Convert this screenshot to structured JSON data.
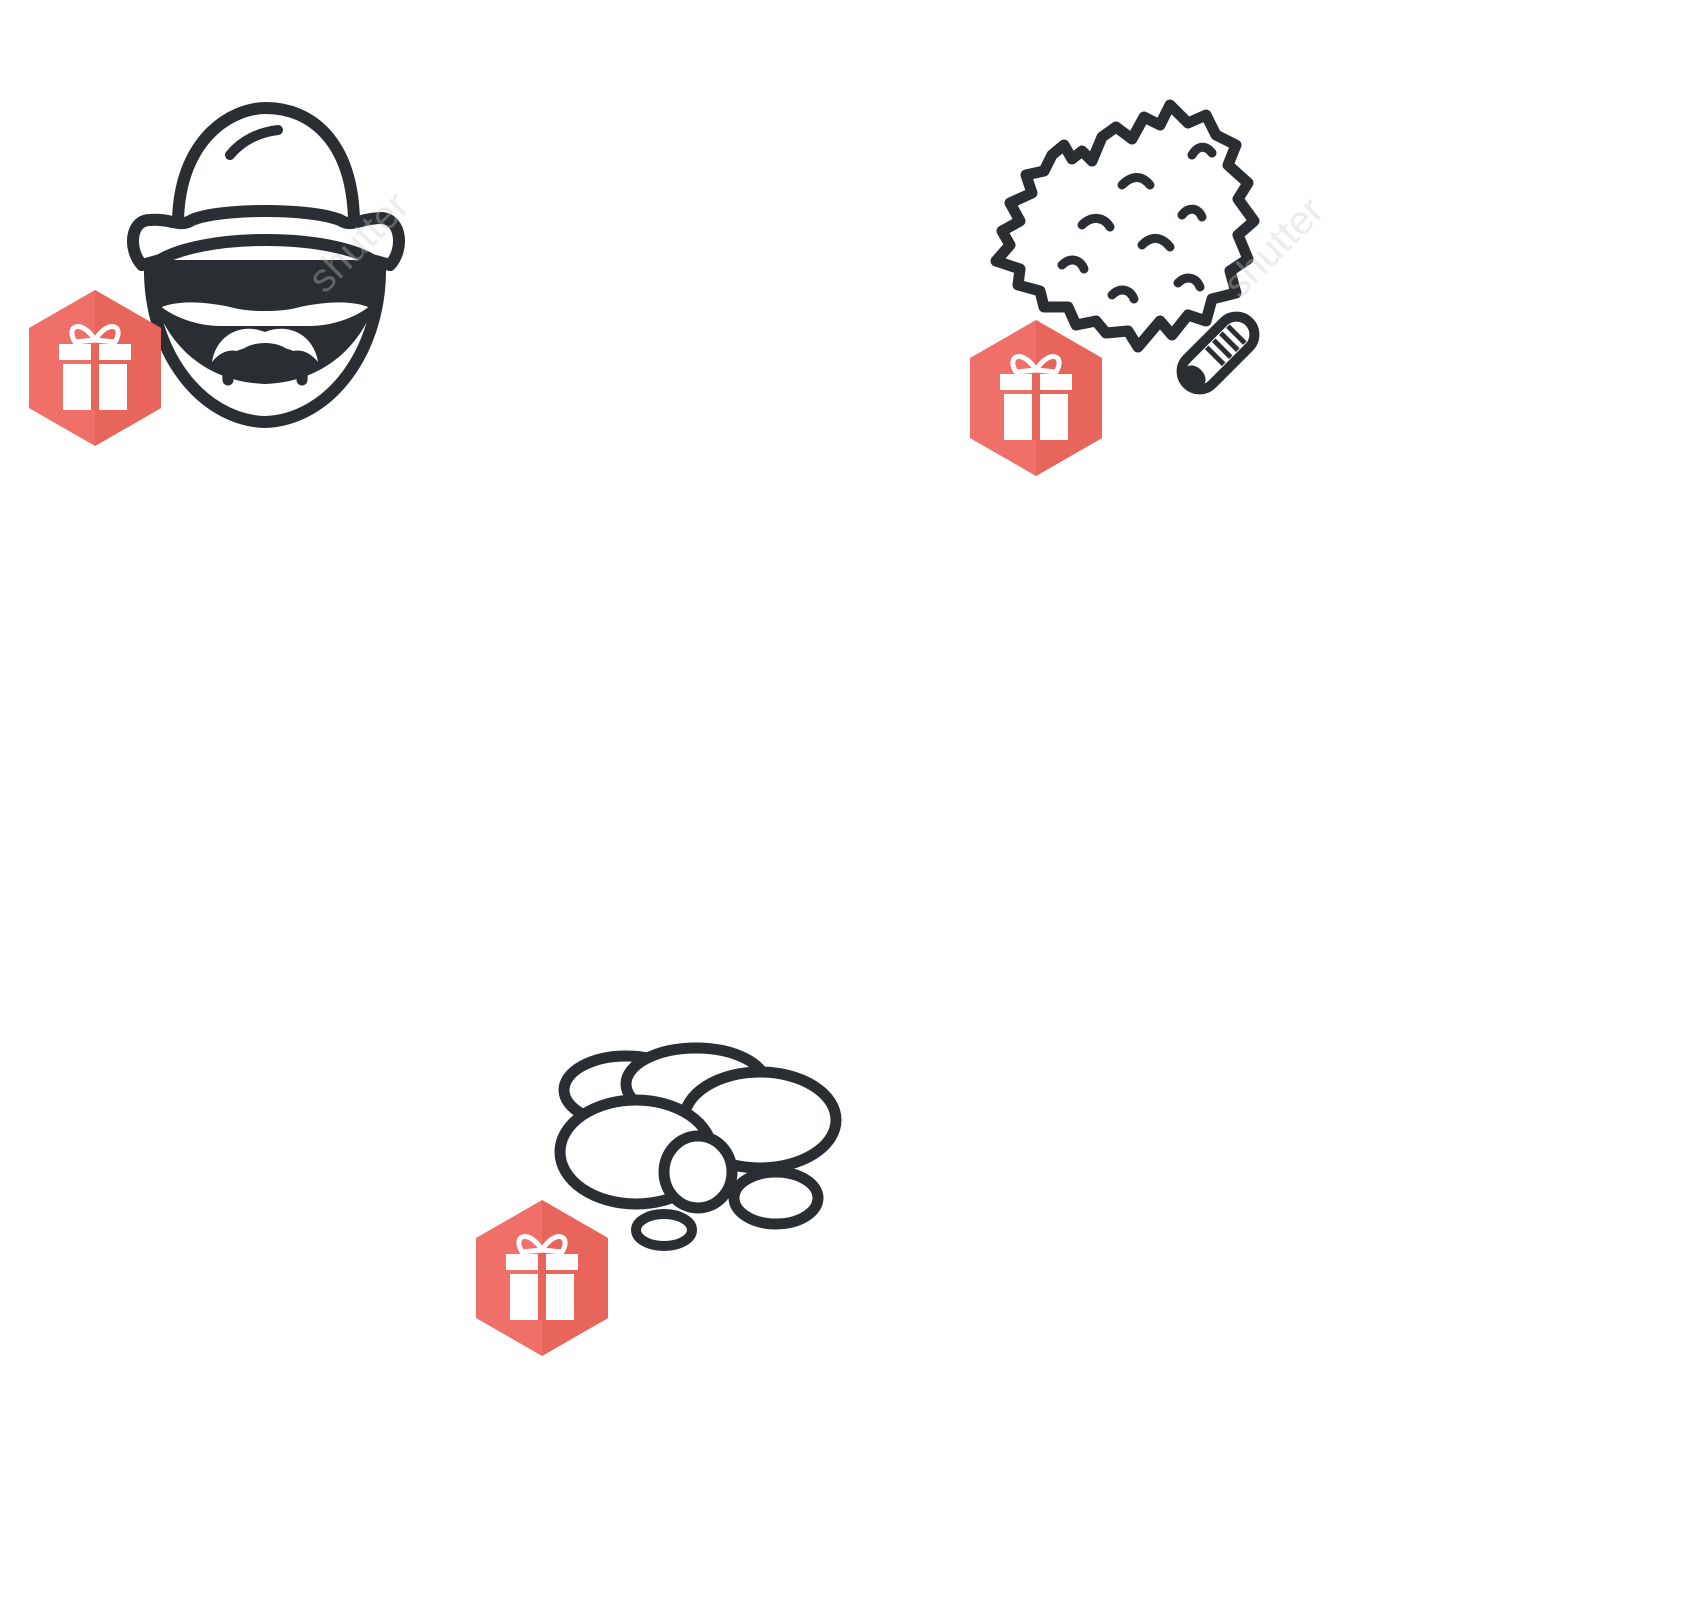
{
  "items": [
    {
      "name": "sauna-man",
      "icon": "man-with-sauna-hat-sunglasses-mustache-icon"
    },
    {
      "name": "birch-broom",
      "icon": "birch-broom-venik-icon"
    },
    {
      "name": "sauna-stones",
      "icon": "sauna-stones-icon"
    }
  ],
  "gift_badge": {
    "icon": "gift-box-icon",
    "color": "#e8655b",
    "color_light": "#ee7068"
  },
  "line_color": "#2a2d31",
  "watermark_text": "shutter"
}
